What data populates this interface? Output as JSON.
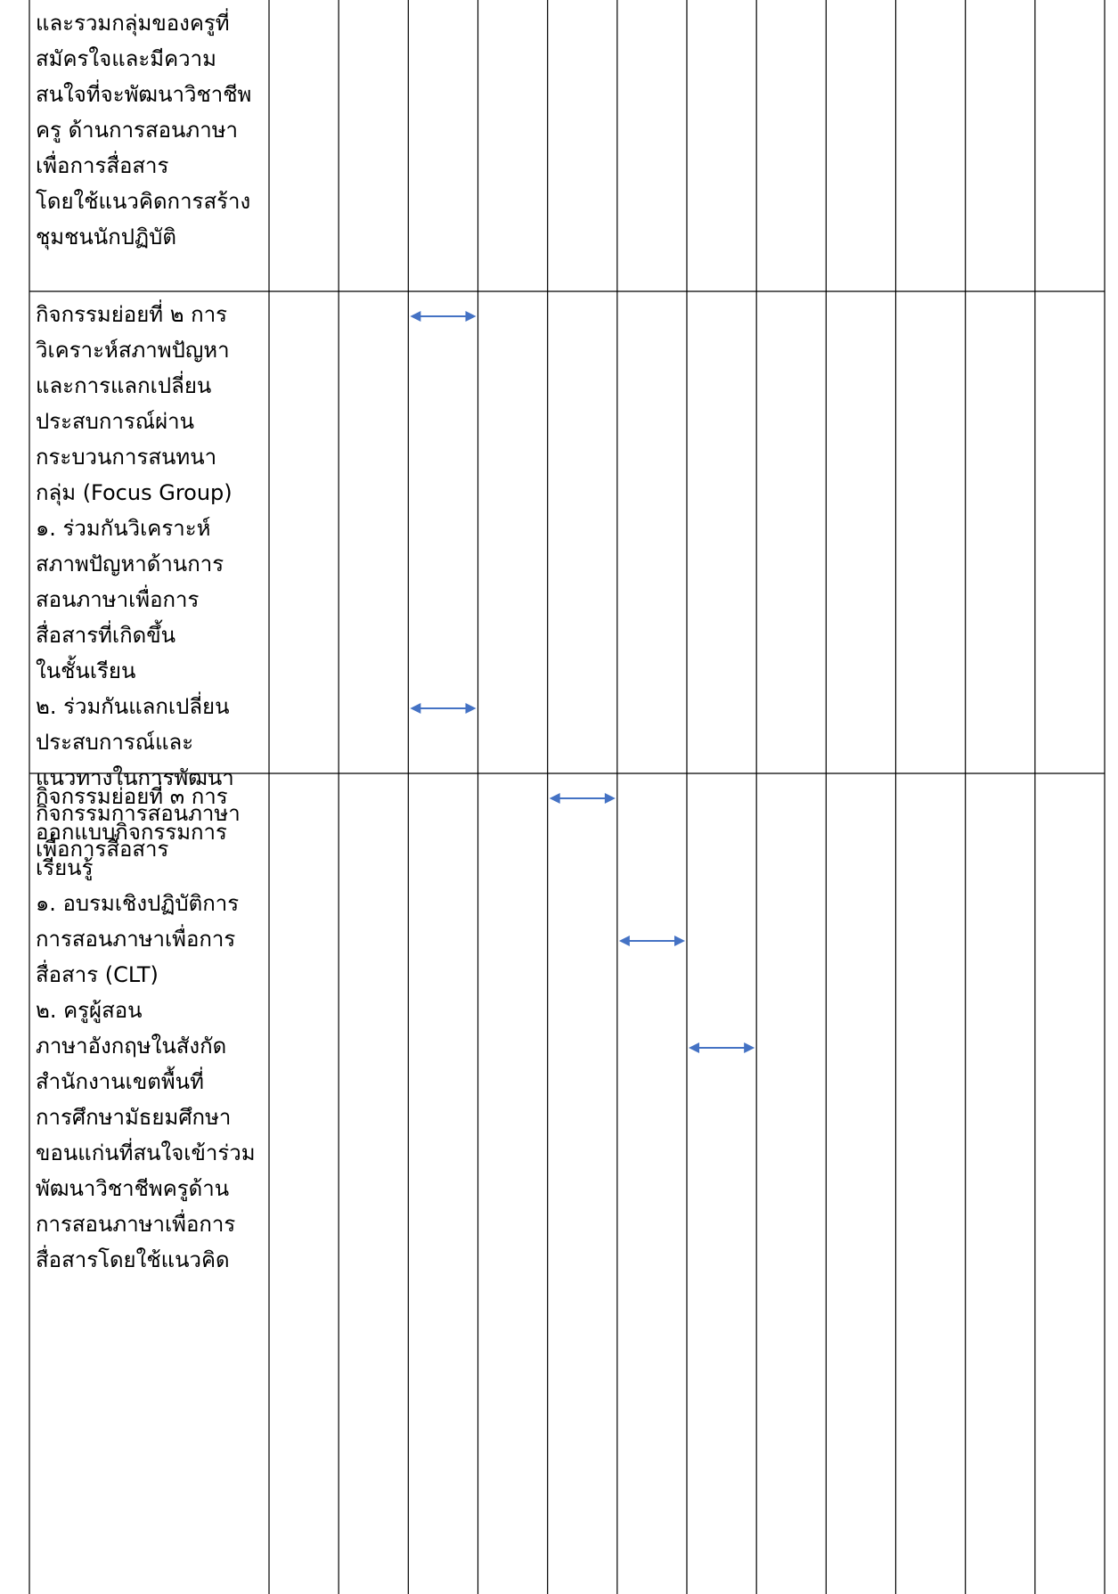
{
  "table": {
    "rows": [
      {
        "lines": [
          "และรวมกลุ่มของครูที่",
          "สมัครใจและมีความ",
          "สนใจที่จะพัฒนาวิชาชีพ",
          "ครู ด้านการสอนภาษา",
          "เพื่อการสื่อสาร",
          "โดยใช้แนวคิดการสร้าง",
          "ชุมชนนักปฏิบัติ"
        ]
      },
      {
        "lines": [
          "กิจกรรมย่อยที่ ๒ การ",
          "วิเคราะห์สภาพปัญหา",
          "และการแลกเปลี่ยน",
          "ประสบการณ์ผ่าน",
          "กระบวนการสนทนา",
          "กลุ่ม (Focus Group)",
          "๑. ร่วมกันวิเคราะห์",
          "สภาพปัญหาด้านการ",
          "สอนภาษาเพื่อการ",
          "สื่อสารที่เกิดขึ้น",
          "ในชั้นเรียน",
          "๒. ร่วมกันแลกเปลี่ยน",
          "ประสบการณ์และ",
          "แนวทางในการพัฒนา",
          "กิจกรรมการสอนภาษา",
          "เพื่อการสื่อสาร"
        ]
      },
      {
        "lines": [
          "กิจกรรมย่อยที่ ๓ การ",
          "ออกแบบกิจกรรมการ",
          "เรียนรู้",
          "๑.  อบรมเชิงปฏิบัติการ",
          "การสอนภาษาเพื่อการ",
          "สื่อสาร (CLT)",
          "๒. ครูผู้สอน",
          "ภาษาอังกฤษในสังกัด",
          "สำนักงานเขตพื้นที่",
          "การศึกษามัธยมศึกษา",
          "ขอนแก่นที่สนใจเข้าร่วม",
          "พัฒนาวิชาชีพครูด้าน",
          "การสอนภาษาเพื่อการ",
          "สื่อสารโดยใช้แนวคิด"
        ]
      }
    ],
    "timeline_columns": 12,
    "arrows": [
      {
        "row": 1,
        "line": 0,
        "column": 2
      },
      {
        "row": 1,
        "line": 11,
        "column": 2
      },
      {
        "row": 2,
        "line": 0,
        "column": 4
      },
      {
        "row": 2,
        "line": 4,
        "column": 5
      },
      {
        "row": 2,
        "line": 7,
        "column": 6
      }
    ],
    "colors": {
      "grid": "#000000",
      "arrow": "#4472c4"
    }
  }
}
